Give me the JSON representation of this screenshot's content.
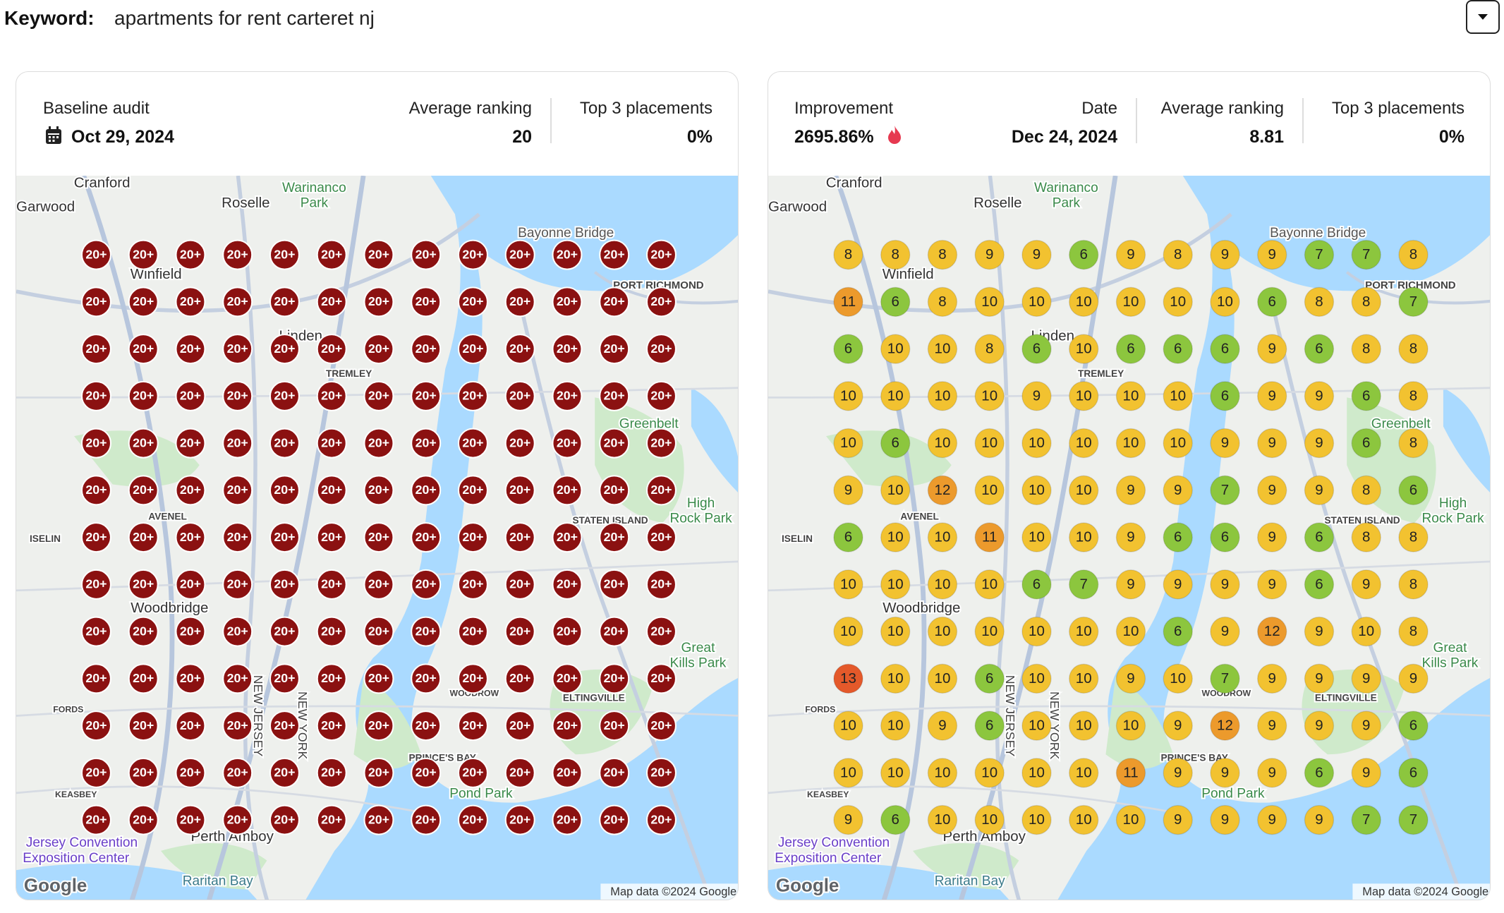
{
  "header": {
    "keyword_label": "Keyword:",
    "keyword": "apartments for rent carteret nj"
  },
  "baseline": {
    "title": "Baseline audit",
    "date": "Oct 29, 2024",
    "avg_label": "Average ranking",
    "avg": "20",
    "top3_label": "Top 3 placements",
    "top3": "0%",
    "marker_color": "#8b1111",
    "grid": [
      [
        "20+",
        "20+",
        "20+",
        "20+",
        "20+",
        "20+",
        "20+",
        "20+",
        "20+",
        "20+",
        "20+",
        "20+",
        "20+"
      ],
      [
        "20+",
        "20+",
        "20+",
        "20+",
        "20+",
        "20+",
        "20+",
        "20+",
        "20+",
        "20+",
        "20+",
        "20+",
        "20+"
      ],
      [
        "20+",
        "20+",
        "20+",
        "20+",
        "20+",
        "20+",
        "20+",
        "20+",
        "20+",
        "20+",
        "20+",
        "20+",
        "20+"
      ],
      [
        "20+",
        "20+",
        "20+",
        "20+",
        "20+",
        "20+",
        "20+",
        "20+",
        "20+",
        "20+",
        "20+",
        "20+",
        "20+"
      ],
      [
        "20+",
        "20+",
        "20+",
        "20+",
        "20+",
        "20+",
        "20+",
        "20+",
        "20+",
        "20+",
        "20+",
        "20+",
        "20+"
      ],
      [
        "20+",
        "20+",
        "20+",
        "20+",
        "20+",
        "20+",
        "20+",
        "20+",
        "20+",
        "20+",
        "20+",
        "20+",
        "20+"
      ],
      [
        "20+",
        "20+",
        "20+",
        "20+",
        "20+",
        "20+",
        "20+",
        "20+",
        "20+",
        "20+",
        "20+",
        "20+",
        "20+"
      ],
      [
        "20+",
        "20+",
        "20+",
        "20+",
        "20+",
        "20+",
        "20+",
        "20+",
        "20+",
        "20+",
        "20+",
        "20+",
        "20+"
      ],
      [
        "20+",
        "20+",
        "20+",
        "20+",
        "20+",
        "20+",
        "20+",
        "20+",
        "20+",
        "20+",
        "20+",
        "20+",
        "20+"
      ],
      [
        "20+",
        "20+",
        "20+",
        "20+",
        "20+",
        "20+",
        "20+",
        "20+",
        "20+",
        "20+",
        "20+",
        "20+",
        "20+"
      ],
      [
        "20+",
        "20+",
        "20+",
        "20+",
        "20+",
        "20+",
        "20+",
        "20+",
        "20+",
        "20+",
        "20+",
        "20+",
        "20+"
      ],
      [
        "20+",
        "20+",
        "20+",
        "20+",
        "20+",
        "20+",
        "20+",
        "20+",
        "20+",
        "20+",
        "20+",
        "20+",
        "20+"
      ],
      [
        "20+",
        "20+",
        "20+",
        "20+",
        "20+",
        "20+",
        "20+",
        "20+",
        "20+",
        "20+",
        "20+",
        "20+",
        "20+"
      ]
    ]
  },
  "current": {
    "improvement_label": "Improvement",
    "improvement": "2695.86%",
    "date_label": "Date",
    "date": "Dec 24, 2024",
    "avg_label": "Average ranking",
    "avg": "8.81",
    "top3_label": "Top 3 placements",
    "top3": "0%",
    "color_scale": [
      {
        "max": 7,
        "color": "#8cc63e"
      },
      {
        "max": 10,
        "color": "#f2c230"
      },
      {
        "max": 12,
        "color": "#ec9a2c"
      },
      {
        "color": "#e4592a"
      }
    ],
    "grid": [
      [
        8,
        8,
        8,
        9,
        9,
        6,
        9,
        8,
        9,
        9,
        7,
        7,
        8
      ],
      [
        11,
        6,
        8,
        10,
        10,
        10,
        10,
        10,
        10,
        6,
        8,
        8,
        7
      ],
      [
        6,
        10,
        10,
        8,
        6,
        10,
        6,
        6,
        6,
        9,
        6,
        8,
        8
      ],
      [
        10,
        10,
        10,
        10,
        9,
        10,
        10,
        10,
        6,
        9,
        9,
        6,
        8
      ],
      [
        10,
        6,
        10,
        10,
        10,
        10,
        10,
        10,
        9,
        9,
        9,
        6,
        8
      ],
      [
        9,
        10,
        12,
        10,
        10,
        10,
        9,
        9,
        7,
        9,
        9,
        8,
        6
      ],
      [
        6,
        10,
        10,
        11,
        10,
        10,
        9,
        6,
        6,
        9,
        6,
        8,
        8
      ],
      [
        10,
        10,
        10,
        10,
        6,
        7,
        9,
        9,
        9,
        9,
        6,
        9,
        8
      ],
      [
        10,
        10,
        10,
        10,
        10,
        10,
        10,
        6,
        9,
        12,
        9,
        10,
        8
      ],
      [
        13,
        10,
        10,
        6,
        10,
        10,
        9,
        10,
        7,
        9,
        9,
        9,
        9
      ],
      [
        10,
        10,
        9,
        6,
        10,
        10,
        10,
        9,
        12,
        9,
        9,
        9,
        6
      ],
      [
        10,
        10,
        10,
        10,
        10,
        10,
        11,
        9,
        9,
        9,
        6,
        9,
        6
      ],
      [
        9,
        6,
        10,
        10,
        10,
        10,
        10,
        9,
        9,
        9,
        9,
        7,
        7
      ]
    ]
  },
  "map": {
    "labels": [
      "Cranford",
      "Garwood",
      "Roselle",
      "Warinanco",
      "Park",
      "Winfield",
      "Linden",
      "Bayonne Bridge",
      "PORT RICHMOND",
      "TREMLEY",
      "Greenbelt",
      "AVENEL",
      "ISELIN",
      "Woodbridge",
      "Great",
      "Kills Park",
      "High",
      "Rock Park",
      "ELTINGVILLE",
      "WOODROW",
      "PRINCE'S BAY",
      "KEASBEY",
      "Perth Amboy",
      "Raritan Bay",
      "Jersey Convention",
      "Exposition Center",
      "Pond Park",
      "FORDS",
      "STATEN ISLAND",
      "NEW JERSEY",
      "NEW YORK"
    ],
    "attribution": "Map data ©2024 Google",
    "logo": "Google"
  }
}
